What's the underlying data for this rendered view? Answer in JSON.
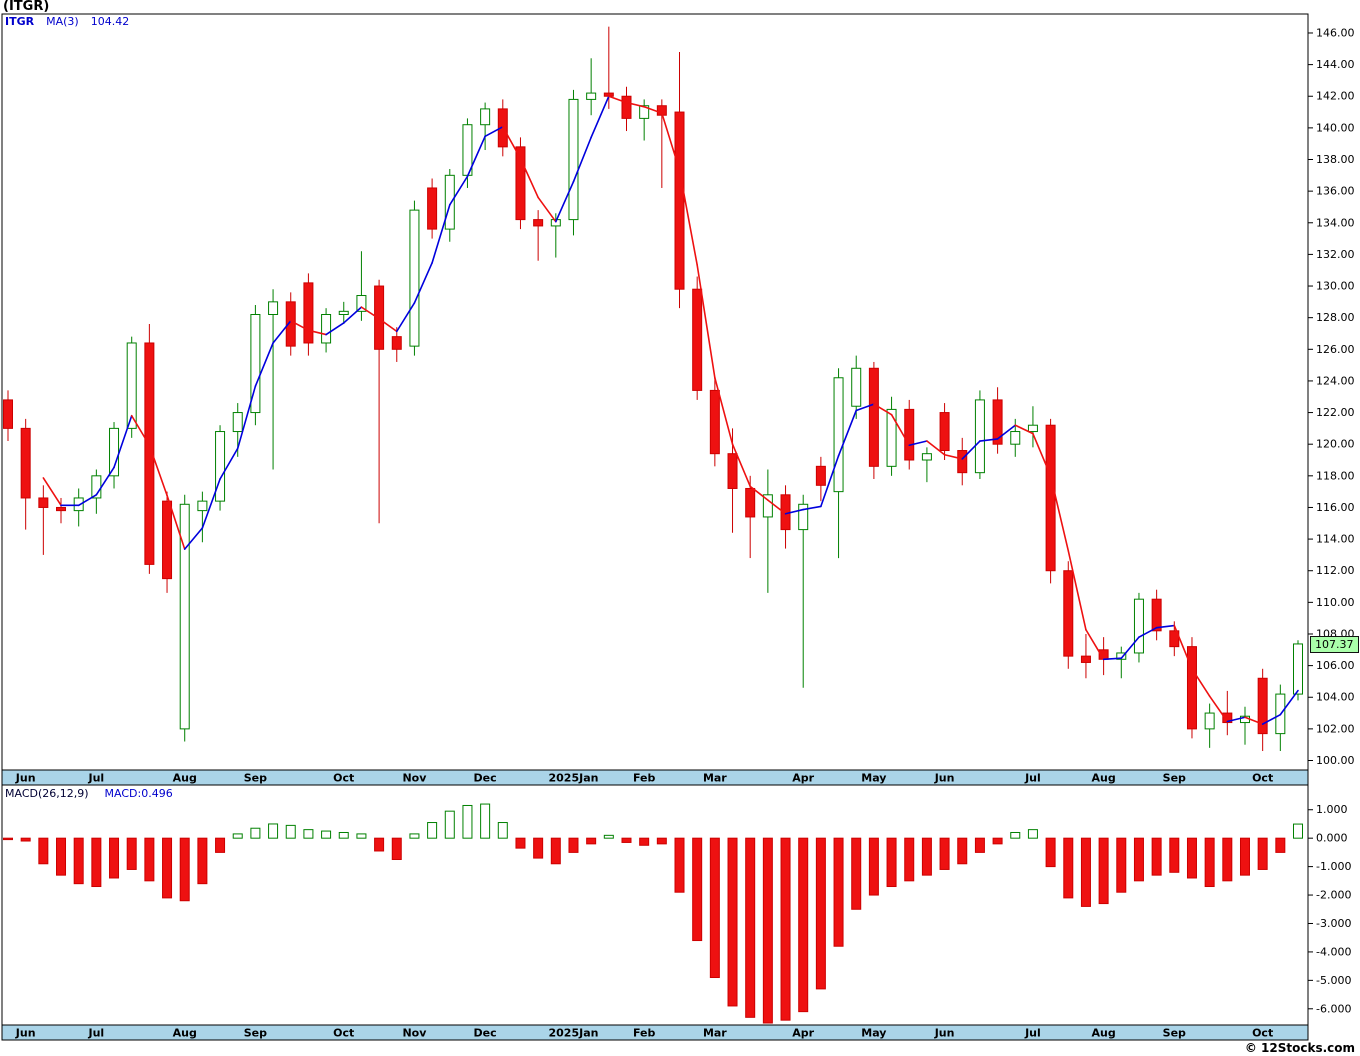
{
  "title": "(ITGR)",
  "legend": {
    "symbol": "ITGR",
    "ma_label": "MA(3)",
    "ma_value": "104.42"
  },
  "macd_legend": {
    "label": "MACD(26,12,9)",
    "value": "MACD:0.496"
  },
  "price_tag": "107.37",
  "copyright": "© 12Stocks.com",
  "colors": {
    "up": "#008000",
    "down": "#ee1111",
    "down_stroke": "#cc0000",
    "ma_up": "#0000dd",
    "ma_down": "#ee1111",
    "month_band": "#aad4e8",
    "axis_text": "#000000",
    "price_tag_bg": "#aaffaa",
    "legend_blue": "#0000cc"
  },
  "chart_data": {
    "type": "candlestick",
    "title": "(ITGR)",
    "ylabel": "Price",
    "grid": false,
    "price_axis": {
      "min": 99.4,
      "max": 147.2,
      "tick_step": 2,
      "ticks": [
        146,
        144,
        142,
        140,
        138,
        136,
        134,
        132,
        130,
        128,
        126,
        124,
        122,
        120,
        118,
        116,
        114,
        112,
        110,
        108,
        106,
        104,
        102,
        100
      ]
    },
    "macd_axis": {
      "min": -6.57,
      "max": 1.87,
      "ticks": [
        1,
        0,
        -1,
        -2,
        -3,
        -4,
        -5,
        -6
      ]
    },
    "ma_period": 3,
    "last_price": 107.37,
    "last_macd": 0.496,
    "months": [
      {
        "label": "Jun",
        "index": 1
      },
      {
        "label": "Jul",
        "index": 5
      },
      {
        "label": "Aug",
        "index": 10
      },
      {
        "label": "Sep",
        "index": 14
      },
      {
        "label": "Oct",
        "index": 19
      },
      {
        "label": "Nov",
        "index": 23
      },
      {
        "label": "Dec",
        "index": 27
      },
      {
        "label": "2025Jan",
        "index": 32
      },
      {
        "label": "Feb",
        "index": 36
      },
      {
        "label": "Mar",
        "index": 40
      },
      {
        "label": "Apr",
        "index": 45
      },
      {
        "label": "May",
        "index": 49
      },
      {
        "label": "Jun",
        "index": 53
      },
      {
        "label": "Jul",
        "index": 58
      },
      {
        "label": "Aug",
        "index": 62
      },
      {
        "label": "Sep",
        "index": 66
      },
      {
        "label": "Oct",
        "index": 71
      }
    ],
    "candles": [
      [
        122.8,
        123.4,
        120.2,
        121.0
      ],
      [
        121.0,
        121.6,
        114.6,
        116.6
      ],
      [
        116.6,
        117.4,
        113.0,
        116.0
      ],
      [
        116.0,
        116.6,
        115.0,
        115.8
      ],
      [
        115.8,
        117.2,
        114.8,
        116.6
      ],
      [
        116.6,
        118.4,
        115.6,
        118.0
      ],
      [
        118.0,
        121.4,
        117.2,
        121.0
      ],
      [
        121.0,
        126.8,
        120.4,
        126.4
      ],
      [
        126.4,
        127.6,
        111.8,
        112.4
      ],
      [
        116.4,
        117.0,
        110.6,
        111.5
      ],
      [
        102.0,
        116.8,
        101.2,
        116.2
      ],
      [
        115.8,
        117.0,
        113.8,
        116.4
      ],
      [
        116.4,
        121.2,
        115.8,
        120.8
      ],
      [
        120.8,
        122.6,
        119.2,
        122.0
      ],
      [
        122.0,
        128.8,
        121.2,
        128.2
      ],
      [
        128.2,
        129.8,
        118.4,
        129.0
      ],
      [
        129.0,
        129.6,
        125.6,
        126.2
      ],
      [
        130.2,
        130.8,
        125.6,
        126.4
      ],
      [
        126.4,
        128.6,
        125.8,
        128.2
      ],
      [
        128.2,
        129.0,
        127.6,
        128.4
      ],
      [
        128.4,
        132.2,
        127.8,
        129.4
      ],
      [
        130.0,
        130.4,
        115.0,
        126.0
      ],
      [
        126.8,
        127.4,
        125.2,
        126.0
      ],
      [
        126.2,
        135.4,
        125.6,
        134.8
      ],
      [
        136.2,
        136.8,
        133.0,
        133.6
      ],
      [
        133.6,
        137.4,
        132.8,
        137.0
      ],
      [
        137.0,
        140.6,
        136.2,
        140.2
      ],
      [
        140.2,
        141.6,
        138.6,
        141.2
      ],
      [
        141.2,
        141.8,
        138.2,
        138.8
      ],
      [
        138.8,
        139.4,
        133.6,
        134.2
      ],
      [
        134.2,
        134.8,
        131.6,
        133.8
      ],
      [
        133.8,
        134.6,
        131.8,
        134.2
      ],
      [
        134.2,
        142.4,
        133.2,
        141.8
      ],
      [
        141.8,
        144.4,
        140.8,
        142.2
      ],
      [
        142.2,
        146.4,
        141.2,
        142.0
      ],
      [
        142.0,
        142.6,
        139.8,
        140.6
      ],
      [
        140.6,
        141.8,
        139.2,
        141.4
      ],
      [
        141.4,
        141.8,
        136.2,
        140.8
      ],
      [
        141.0,
        144.8,
        128.6,
        129.8
      ],
      [
        129.8,
        130.6,
        122.8,
        123.4
      ],
      [
        123.4,
        124.2,
        118.6,
        119.4
      ],
      [
        119.4,
        121.0,
        114.4,
        117.2
      ],
      [
        117.2,
        118.0,
        112.8,
        115.4
      ],
      [
        115.4,
        118.4,
        110.6,
        116.8
      ],
      [
        116.8,
        117.4,
        113.4,
        114.6
      ],
      [
        114.6,
        116.8,
        104.6,
        116.2
      ],
      [
        118.6,
        119.2,
        116.4,
        117.4
      ],
      [
        117.0,
        124.8,
        112.8,
        124.2
      ],
      [
        122.4,
        125.6,
        121.6,
        124.8
      ],
      [
        124.8,
        125.2,
        117.8,
        118.6
      ],
      [
        118.6,
        123.0,
        118.0,
        122.2
      ],
      [
        122.2,
        122.8,
        118.4,
        119.0
      ],
      [
        119.0,
        119.8,
        117.6,
        119.4
      ],
      [
        122.0,
        122.6,
        119.0,
        119.6
      ],
      [
        119.6,
        120.4,
        117.4,
        118.2
      ],
      [
        118.2,
        123.4,
        117.8,
        122.8
      ],
      [
        122.8,
        123.6,
        119.4,
        120.0
      ],
      [
        120.0,
        121.6,
        119.2,
        120.8
      ],
      [
        120.8,
        122.4,
        119.8,
        121.2
      ],
      [
        121.2,
        121.6,
        111.2,
        112.0
      ],
      [
        112.0,
        112.6,
        105.8,
        106.6
      ],
      [
        106.6,
        108.0,
        105.2,
        106.2
      ],
      [
        107.0,
        107.8,
        105.4,
        106.4
      ],
      [
        106.4,
        107.2,
        105.2,
        106.8
      ],
      [
        106.8,
        110.6,
        106.2,
        110.2
      ],
      [
        110.2,
        110.8,
        107.6,
        108.2
      ],
      [
        108.2,
        108.8,
        106.6,
        107.2
      ],
      [
        107.2,
        107.8,
        101.4,
        102.0
      ],
      [
        102.0,
        103.6,
        100.8,
        103.0
      ],
      [
        103.0,
        104.4,
        101.6,
        102.4
      ],
      [
        102.4,
        103.4,
        101.0,
        102.8
      ],
      [
        105.2,
        105.8,
        100.6,
        101.7
      ],
      [
        101.7,
        104.8,
        100.6,
        104.2
      ],
      [
        104.2,
        107.6,
        103.8,
        107.37
      ]
    ],
    "macd_hist": [
      -0.05,
      -0.1,
      -0.9,
      -1.3,
      -1.6,
      -1.7,
      -1.4,
      -1.1,
      -1.5,
      -2.1,
      -2.2,
      -1.6,
      -0.5,
      0.15,
      0.35,
      0.5,
      0.45,
      0.3,
      0.25,
      0.2,
      0.15,
      -0.45,
      -0.75,
      0.15,
      0.55,
      0.95,
      1.15,
      1.2,
      0.55,
      -0.35,
      -0.7,
      -0.9,
      -0.5,
      -0.2,
      0.1,
      -0.15,
      -0.25,
      -0.2,
      -1.9,
      -3.6,
      -4.9,
      -5.9,
      -6.3,
      -6.5,
      -6.4,
      -6.1,
      -5.3,
      -3.8,
      -2.5,
      -2.0,
      -1.7,
      -1.5,
      -1.3,
      -1.1,
      -0.9,
      -0.5,
      -0.2,
      0.2,
      0.3,
      -1.0,
      -2.1,
      -2.4,
      -2.3,
      -1.9,
      -1.5,
      -1.3,
      -1.2,
      -1.4,
      -1.7,
      -1.5,
      -1.3,
      -1.1,
      -0.5,
      0.496
    ]
  }
}
